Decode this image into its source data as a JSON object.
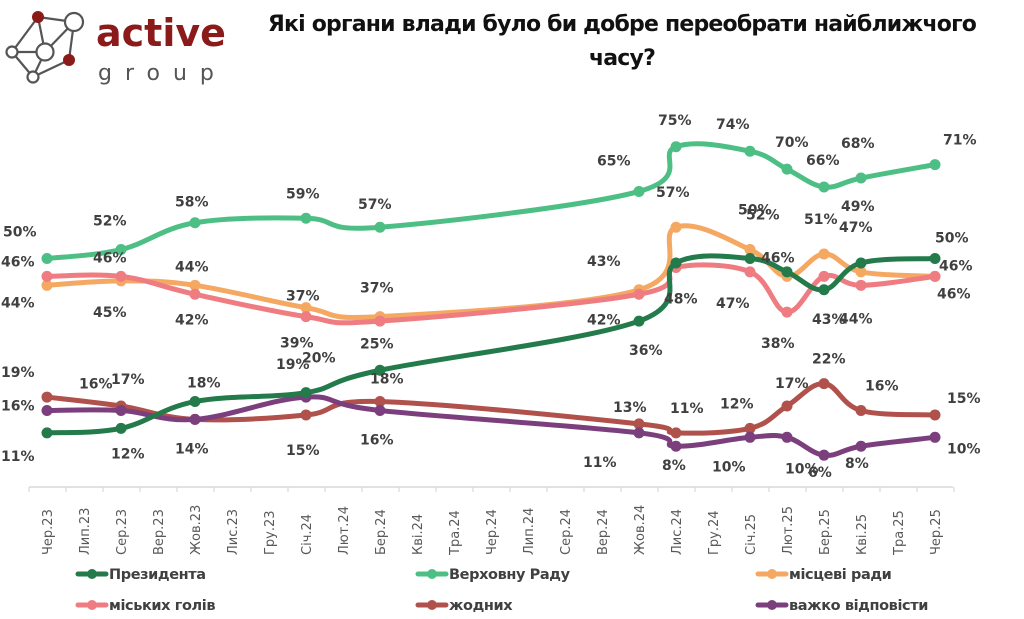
{
  "logo": {
    "word1": "active",
    "word2": "group",
    "color_dark": "#8b1a1a",
    "color_gray": "#555555"
  },
  "chart_data": {
    "type": "line",
    "title": "Які органи влади було би добре переобрати найближчого часу?",
    "title_line1": "Які органи влади було би добре переобрати найближчого",
    "title_line2": "часу?",
    "xlabel": "",
    "ylabel": "",
    "grid": false,
    "legend_position": "bottom",
    "categories": [
      "Чер.23",
      "Лип.23",
      "Сер.23",
      "Вер.23",
      "Жов.23",
      "Лис.23",
      "Гру.23",
      "Січ.24",
      "Лют.24",
      "Бер.24",
      "Кві.24",
      "Тра.24",
      "Чер.24",
      "Лип.24",
      "Сер.24",
      "Вер.24",
      "Жов.24",
      "Лис.24",
      "Гру.24",
      "Січ.25",
      "Лют.25",
      "Бер.25",
      "Кві.25",
      "Тра.25",
      "Чер.25"
    ],
    "series": [
      {
        "name": "Президента",
        "color": "#237a4b",
        "points": [
          {
            "i": 0,
            "v": 11,
            "label": "11%"
          },
          {
            "i": 2,
            "v": 12,
            "label": "12%"
          },
          {
            "i": 4,
            "v": 18,
            "label": "18%"
          },
          {
            "i": 7,
            "v": 20,
            "label": "20%"
          },
          {
            "i": 9,
            "v": 25,
            "label": "25%"
          },
          {
            "i": 16,
            "v": 36,
            "label": "36%"
          },
          {
            "i": 17,
            "v": 49,
            "label": ""
          },
          {
            "i": 19,
            "v": 50,
            "label": "50%"
          },
          {
            "i": 20,
            "v": 47,
            "label": ""
          },
          {
            "i": 21,
            "v": 43,
            "label": "43%"
          },
          {
            "i": 22,
            "v": 49,
            "label": "49%"
          },
          {
            "i": 24,
            "v": 50,
            "label": "50%"
          }
        ]
      },
      {
        "name": "Верховну Раду",
        "color": "#4dbf85",
        "points": [
          {
            "i": 0,
            "v": 50,
            "label": "50%"
          },
          {
            "i": 2,
            "v": 52,
            "label": "52%"
          },
          {
            "i": 4,
            "v": 58,
            "label": "58%"
          },
          {
            "i": 7,
            "v": 59,
            "label": "59%"
          },
          {
            "i": 9,
            "v": 57,
            "label": "57%"
          },
          {
            "i": 16,
            "v": 65,
            "label": "65%"
          },
          {
            "i": 17,
            "v": 75,
            "label": "75%"
          },
          {
            "i": 19,
            "v": 74,
            "label": "74%"
          },
          {
            "i": 20,
            "v": 70,
            "label": "70%"
          },
          {
            "i": 21,
            "v": 66,
            "label": "66%"
          },
          {
            "i": 22,
            "v": 68,
            "label": "68%"
          },
          {
            "i": 24,
            "v": 71,
            "label": "71%"
          }
        ]
      },
      {
        "name": "місцеві ради",
        "color": "#f4a862",
        "points": [
          {
            "i": 0,
            "v": 44,
            "label": "44%"
          },
          {
            "i": 2,
            "v": 45,
            "label": "45%"
          },
          {
            "i": 4,
            "v": 44,
            "label": "44%"
          },
          {
            "i": 7,
            "v": 39,
            "label": "39%"
          },
          {
            "i": 9,
            "v": 37,
            "label": "37%"
          },
          {
            "i": 16,
            "v": 43,
            "label": "43%"
          },
          {
            "i": 17,
            "v": 57,
            "label": "57%"
          },
          {
            "i": 19,
            "v": 52,
            "label": "52%"
          },
          {
            "i": 20,
            "v": 46,
            "label": "46%"
          },
          {
            "i": 21,
            "v": 51,
            "label": "51%"
          },
          {
            "i": 22,
            "v": 47,
            "label": "47%"
          },
          {
            "i": 24,
            "v": 46,
            "label": "46%"
          }
        ]
      },
      {
        "name": "міських голів",
        "color": "#ee7c80",
        "points": [
          {
            "i": 0,
            "v": 46,
            "label": "46%"
          },
          {
            "i": 2,
            "v": 46,
            "label": "46%"
          },
          {
            "i": 4,
            "v": 42,
            "label": "42%"
          },
          {
            "i": 7,
            "v": 37,
            "label": "37%"
          },
          {
            "i": 9,
            "v": 36,
            "label": ""
          },
          {
            "i": 16,
            "v": 42,
            "label": "42%"
          },
          {
            "i": 17,
            "v": 48,
            "label": "48%"
          },
          {
            "i": 19,
            "v": 47,
            "label": "47%"
          },
          {
            "i": 20,
            "v": 38,
            "label": "38%"
          },
          {
            "i": 21,
            "v": 46,
            "label": ""
          },
          {
            "i": 22,
            "v": 44,
            "label": "44%"
          },
          {
            "i": 24,
            "v": 46,
            "label": "46%"
          }
        ]
      },
      {
        "name": "жодних",
        "color": "#b0514c",
        "points": [
          {
            "i": 0,
            "v": 19,
            "label": "19%"
          },
          {
            "i": 2,
            "v": 17,
            "label": "17%"
          },
          {
            "i": 4,
            "v": 14,
            "label": ""
          },
          {
            "i": 7,
            "v": 15,
            "label": "15%"
          },
          {
            "i": 9,
            "v": 18,
            "label": "18%"
          },
          {
            "i": 16,
            "v": 13,
            "label": "13%"
          },
          {
            "i": 17,
            "v": 11,
            "label": "11%"
          },
          {
            "i": 19,
            "v": 12,
            "label": "12%"
          },
          {
            "i": 20,
            "v": 17,
            "label": "17%"
          },
          {
            "i": 21,
            "v": 22,
            "label": "22%"
          },
          {
            "i": 22,
            "v": 16,
            "label": "16%"
          },
          {
            "i": 24,
            "v": 15,
            "label": "15%"
          }
        ]
      },
      {
        "name": "важко відповісти",
        "color": "#7a3f7c",
        "points": [
          {
            "i": 0,
            "v": 16,
            "label": "16%"
          },
          {
            "i": 2,
            "v": 16,
            "label": "16%"
          },
          {
            "i": 4,
            "v": 14,
            "label": "14%"
          },
          {
            "i": 7,
            "v": 19,
            "label": "19%"
          },
          {
            "i": 9,
            "v": 16,
            "label": "16%"
          },
          {
            "i": 16,
            "v": 11,
            "label": "11%"
          },
          {
            "i": 17,
            "v": 8,
            "label": "8%"
          },
          {
            "i": 19,
            "v": 10,
            "label": "10%"
          },
          {
            "i": 20,
            "v": 10,
            "label": "10%"
          },
          {
            "i": 21,
            "v": 6,
            "label": "6%"
          },
          {
            "i": 22,
            "v": 8,
            "label": "8%"
          },
          {
            "i": 24,
            "v": 10,
            "label": "10%"
          }
        ]
      }
    ],
    "ylim": [
      0,
      80
    ]
  }
}
